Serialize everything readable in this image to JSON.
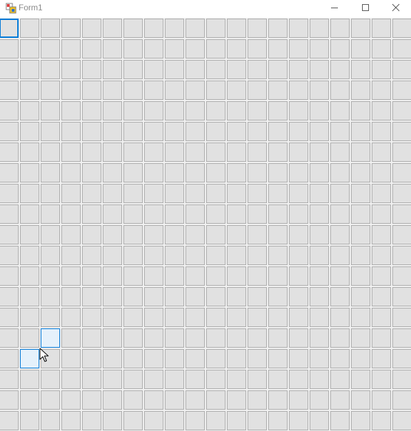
{
  "window": {
    "title": "Form1",
    "icon": "winforms-app-icon",
    "controls": [
      "minimize-icon",
      "maximize-icon",
      "close-icon"
    ]
  },
  "grid": {
    "rows": 20,
    "cols": 20,
    "cell_color": "#e1e1e1",
    "border_color": "#adadad",
    "accent_color": "#0078d7",
    "highlight_color": "#e5f1fb",
    "focused_cell": {
      "row": 0,
      "col": 0
    },
    "highlighted_cells": [
      {
        "row": 15,
        "col": 2
      },
      {
        "row": 16,
        "col": 1
      }
    ]
  },
  "cursor": {
    "icon": "arrow-cursor-icon"
  }
}
